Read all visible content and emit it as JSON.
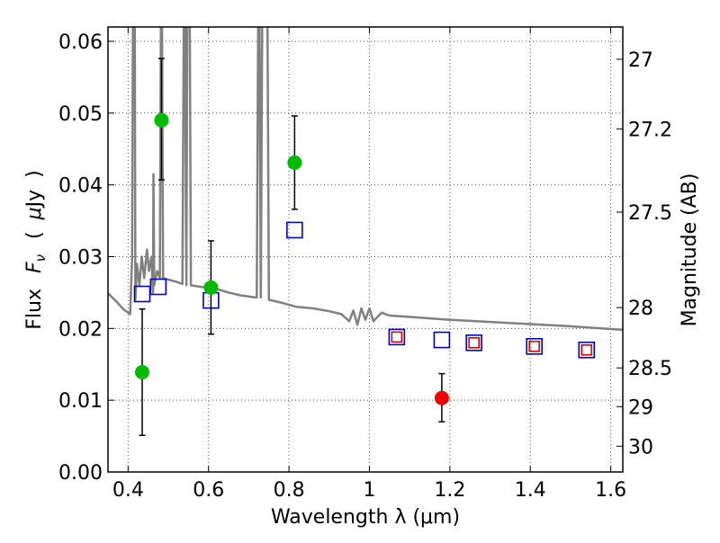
{
  "chart_data": {
    "type": "scatter",
    "xlabel": "Wavelength  λ (μm)",
    "ylabel": "Flux  Fν  ( μJy )",
    "ylabel_parts": {
      "flux": "Flux",
      "f": "F",
      "nu": "ν",
      "open": "(",
      "mu": "μ",
      "jy": "Jy",
      "close": ")"
    },
    "y2label": "Magnitude (AB)",
    "xlim": [
      0.35,
      1.63
    ],
    "ylim": [
      0.0,
      0.062
    ],
    "grid": true,
    "x_ticks": [
      0.4,
      0.6,
      0.8,
      1.0,
      1.2,
      1.4,
      1.6
    ],
    "x_tick_labels": [
      "0.4",
      "0.6",
      "0.8",
      "1",
      "1.2",
      "1.4",
      "1.6"
    ],
    "y_ticks": [
      0.0,
      0.01,
      0.02,
      0.03,
      0.04,
      0.05,
      0.06
    ],
    "y_tick_labels": [
      "0.00",
      "0.01",
      "0.02",
      "0.03",
      "0.04",
      "0.05",
      "0.06"
    ],
    "y2_ticks": [
      {
        "label": "27",
        "flux": 0.0575
      },
      {
        "label": "27.2",
        "flux": 0.0478
      },
      {
        "label": "27.5",
        "flux": 0.0362
      },
      {
        "label": "28",
        "flux": 0.0229
      },
      {
        "label": "28.5",
        "flux": 0.0145
      },
      {
        "label": "29",
        "flux": 0.0091
      },
      {
        "label": "30",
        "flux": 0.0036
      }
    ],
    "series": [
      {
        "name": "green detections",
        "color": "#00bb00",
        "marker": "circle",
        "points": [
          {
            "x": 0.435,
            "y": 0.0139,
            "err_lo": 0.0051,
            "err_hi": 0.0227
          },
          {
            "x": 0.483,
            "y": 0.049,
            "err_lo": 0.0407,
            "err_hi": 0.0576
          },
          {
            "x": 0.606,
            "y": 0.0257,
            "err_lo": 0.0192,
            "err_hi": 0.0322
          },
          {
            "x": 0.814,
            "y": 0.0431,
            "err_lo": 0.0366,
            "err_hi": 0.0496
          }
        ]
      },
      {
        "name": "red detection",
        "color": "#ee0000",
        "marker": "circle",
        "points": [
          {
            "x": 1.18,
            "y": 0.0103,
            "err_lo": 0.007,
            "err_hi": 0.0137
          }
        ]
      },
      {
        "name": "model photometry (blue)",
        "color": "#0000cc",
        "marker": "open-square-large",
        "points": [
          {
            "x": 0.435,
            "y": 0.0248
          },
          {
            "x": 0.475,
            "y": 0.0258
          },
          {
            "x": 0.606,
            "y": 0.0239
          },
          {
            "x": 0.814,
            "y": 0.0337
          },
          {
            "x": 1.068,
            "y": 0.0188
          },
          {
            "x": 1.18,
            "y": 0.0184
          },
          {
            "x": 1.26,
            "y": 0.018
          },
          {
            "x": 1.41,
            "y": 0.0175
          },
          {
            "x": 1.54,
            "y": 0.017
          }
        ]
      },
      {
        "name": "model photometry (red)",
        "color": "#dd0000",
        "marker": "open-square-small",
        "points": [
          {
            "x": 1.068,
            "y": 0.0188
          },
          {
            "x": 1.26,
            "y": 0.018
          },
          {
            "x": 1.41,
            "y": 0.0175
          },
          {
            "x": 1.54,
            "y": 0.017
          }
        ]
      },
      {
        "name": "SED model spectrum",
        "color": "#808080",
        "marker": "line",
        "points": [
          {
            "x": 0.35,
            "y": 0.0249
          },
          {
            "x": 0.37,
            "y": 0.0238
          },
          {
            "x": 0.39,
            "y": 0.0226
          },
          {
            "x": 0.405,
            "y": 0.022
          },
          {
            "x": 0.41,
            "y": 0.03
          },
          {
            "x": 0.413,
            "y": 0.08
          },
          {
            "x": 0.416,
            "y": 0.08
          },
          {
            "x": 0.418,
            "y": 0.024
          },
          {
            "x": 0.422,
            "y": 0.029
          },
          {
            "x": 0.428,
            "y": 0.026
          },
          {
            "x": 0.434,
            "y": 0.03
          },
          {
            "x": 0.44,
            "y": 0.027
          },
          {
            "x": 0.447,
            "y": 0.031
          },
          {
            "x": 0.452,
            "y": 0.028
          },
          {
            "x": 0.458,
            "y": 0.03
          },
          {
            "x": 0.462,
            "y": 0.025
          },
          {
            "x": 0.463,
            "y": 0.0415
          },
          {
            "x": 0.465,
            "y": 0.026
          },
          {
            "x": 0.472,
            "y": 0.028
          },
          {
            "x": 0.479,
            "y": 0.027
          },
          {
            "x": 0.483,
            "y": 0.08
          },
          {
            "x": 0.487,
            "y": 0.027
          },
          {
            "x": 0.5,
            "y": 0.0268
          },
          {
            "x": 0.52,
            "y": 0.0265
          },
          {
            "x": 0.535,
            "y": 0.0262
          },
          {
            "x": 0.54,
            "y": 0.08
          },
          {
            "x": 0.545,
            "y": 0.026
          },
          {
            "x": 0.548,
            "y": 0.08
          },
          {
            "x": 0.552,
            "y": 0.08
          },
          {
            "x": 0.556,
            "y": 0.026
          },
          {
            "x": 0.58,
            "y": 0.0258
          },
          {
            "x": 0.62,
            "y": 0.0255
          },
          {
            "x": 0.65,
            "y": 0.025
          },
          {
            "x": 0.68,
            "y": 0.0246
          },
          {
            "x": 0.72,
            "y": 0.0243
          },
          {
            "x": 0.725,
            "y": 0.08
          },
          {
            "x": 0.73,
            "y": 0.0243
          },
          {
            "x": 0.735,
            "y": 0.08
          },
          {
            "x": 0.745,
            "y": 0.08
          },
          {
            "x": 0.75,
            "y": 0.024
          },
          {
            "x": 0.78,
            "y": 0.0236
          },
          {
            "x": 0.82,
            "y": 0.023
          },
          {
            "x": 0.86,
            "y": 0.0228
          },
          {
            "x": 0.9,
            "y": 0.0224
          },
          {
            "x": 0.93,
            "y": 0.022
          },
          {
            "x": 0.95,
            "y": 0.021
          },
          {
            "x": 0.96,
            "y": 0.0225
          },
          {
            "x": 0.97,
            "y": 0.0205
          },
          {
            "x": 0.98,
            "y": 0.0228
          },
          {
            "x": 0.99,
            "y": 0.0212
          },
          {
            "x": 1.0,
            "y": 0.0228
          },
          {
            "x": 1.01,
            "y": 0.021
          },
          {
            "x": 1.03,
            "y": 0.0222
          },
          {
            "x": 1.05,
            "y": 0.0218
          },
          {
            "x": 1.1,
            "y": 0.0216
          },
          {
            "x": 1.15,
            "y": 0.0214
          },
          {
            "x": 1.2,
            "y": 0.0212
          },
          {
            "x": 1.3,
            "y": 0.0209
          },
          {
            "x": 1.4,
            "y": 0.0206
          },
          {
            "x": 1.5,
            "y": 0.0203
          },
          {
            "x": 1.63,
            "y": 0.0198
          }
        ]
      }
    ]
  }
}
